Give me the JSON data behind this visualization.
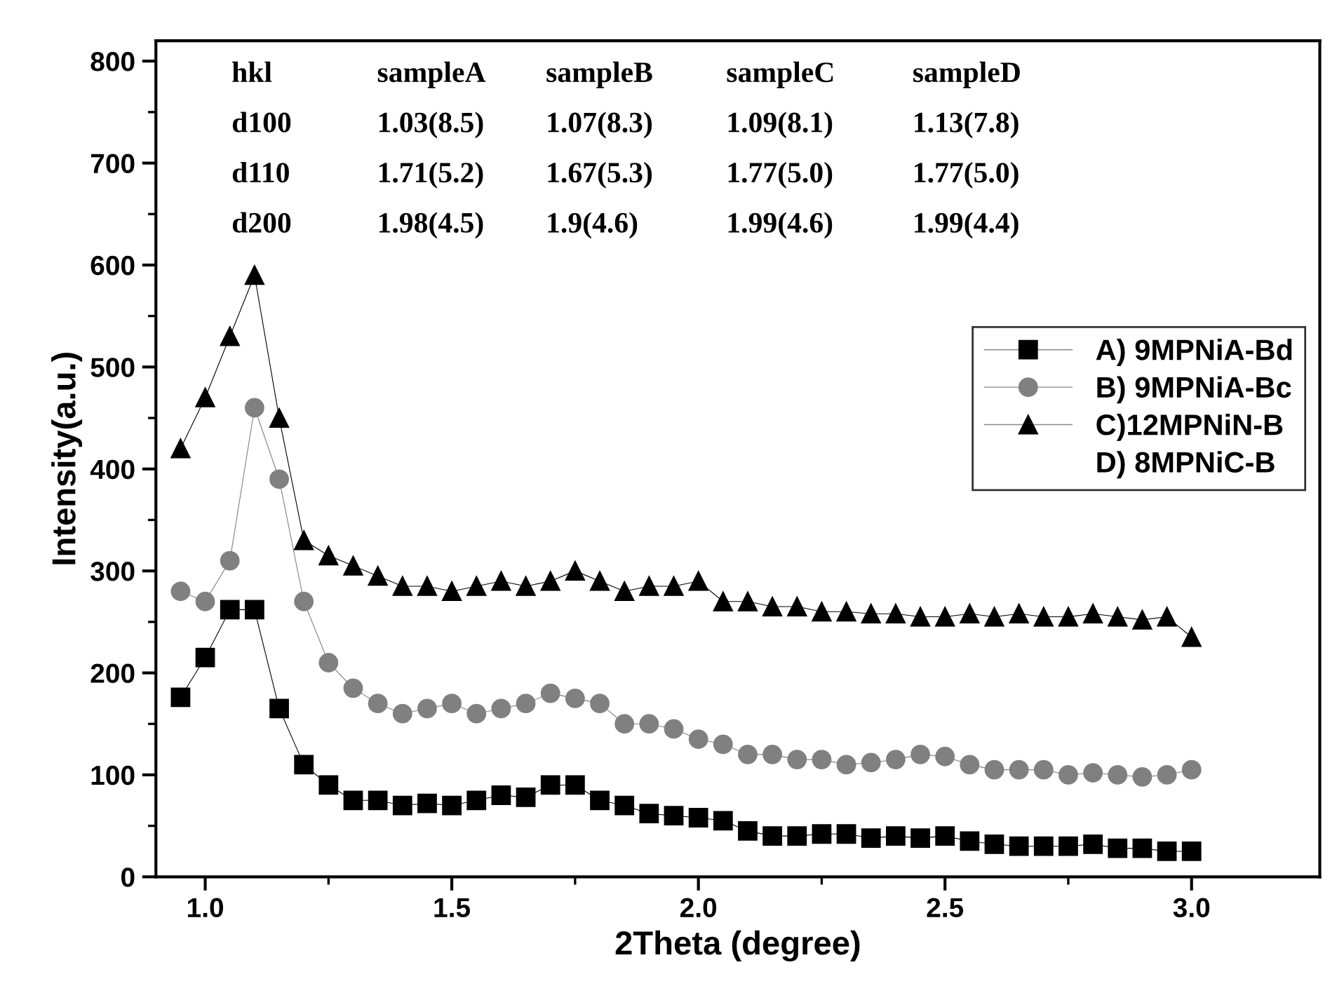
{
  "chart_data": {
    "type": "line",
    "xlabel": "2Theta (degree)",
    "ylabel": "Intensity(a.u.)",
    "x": [
      0.95,
      1.0,
      1.05,
      1.1,
      1.15,
      1.2,
      1.25,
      1.3,
      1.35,
      1.4,
      1.45,
      1.5,
      1.55,
      1.6,
      1.65,
      1.7,
      1.75,
      1.8,
      1.85,
      1.9,
      1.95,
      2.0,
      2.05,
      2.1,
      2.15,
      2.2,
      2.25,
      2.3,
      2.35,
      2.4,
      2.45,
      2.5,
      2.55,
      2.6,
      2.65,
      2.7,
      2.75,
      2.8,
      2.85,
      2.9,
      2.95,
      3.0
    ],
    "series": [
      {
        "name": "A) 9MPNiA-Bd",
        "color": "#000000",
        "marker": "square",
        "values": [
          176,
          215,
          262,
          262,
          165,
          110,
          90,
          75,
          75,
          70,
          72,
          70,
          75,
          80,
          78,
          90,
          90,
          75,
          70,
          62,
          60,
          58,
          55,
          45,
          40,
          40,
          42,
          42,
          38,
          40,
          38,
          40,
          35,
          32,
          30,
          30,
          30,
          32,
          28,
          28,
          25,
          25
        ]
      },
      {
        "name": "B) 9MPNiA-Bc",
        "color": "#808080",
        "marker": "circle",
        "values": [
          280,
          270,
          310,
          460,
          390,
          270,
          210,
          185,
          170,
          160,
          165,
          170,
          160,
          165,
          170,
          180,
          175,
          170,
          150,
          150,
          145,
          135,
          130,
          120,
          120,
          115,
          115,
          110,
          112,
          115,
          120,
          118,
          110,
          105,
          105,
          105,
          100,
          102,
          100,
          98,
          100,
          105
        ]
      },
      {
        "name": "C)12MPNiN-B",
        "color": "#000000",
        "marker": "triangle",
        "values": [
          420,
          470,
          530,
          590,
          450,
          330,
          315,
          305,
          295,
          285,
          285,
          280,
          285,
          290,
          285,
          290,
          300,
          290,
          280,
          285,
          285,
          290,
          270,
          270,
          265,
          265,
          260,
          260,
          258,
          258,
          255,
          255,
          258,
          255,
          258,
          255,
          255,
          258,
          255,
          252,
          255,
          235
        ]
      },
      {
        "name": "D) 8MPNiC-B",
        "color": "#000000",
        "marker": "none",
        "values": [
          null,
          null,
          null,
          null,
          null,
          null,
          null,
          null,
          null,
          null,
          null,
          null,
          null,
          null,
          null,
          null,
          null,
          null,
          null,
          null,
          null,
          null,
          null,
          null,
          null,
          null,
          null,
          null,
          null,
          null,
          null,
          null,
          null,
          null,
          null,
          null,
          null,
          null,
          null,
          null,
          null,
          null
        ]
      }
    ],
    "xlim": [
      0.9,
      3.26
    ],
    "ylim": [
      0,
      820
    ],
    "xticks": [
      {
        "value": 1.0,
        "label": "1.0"
      },
      1.5,
      {
        "value": 2.0,
        "label": "2.0"
      },
      2.5,
      {
        "value": 3.0,
        "label": "3.0"
      }
    ],
    "yticks": [
      0,
      100,
      200,
      300,
      400,
      500,
      600,
      700,
      800
    ],
    "grid": false,
    "legend": "right",
    "line_style": "solid",
    "annotations": [
      "hkl",
      "sampleA",
      "sampleB",
      "sampleC",
      "sampleD",
      "d100",
      "1.03(8.5)",
      "1.07(8.3)",
      "1.09(8.1)",
      "1.13(7.8)",
      "d110",
      "1.71(5.2)",
      "1.67(5.3)",
      "1.77(5.0)",
      "1.77(5.0)",
      "d200",
      "1.98(4.5)",
      "1.9(4.6)",
      "1.99(4.6)",
      "1.99(4.4)"
    ]
  }
}
